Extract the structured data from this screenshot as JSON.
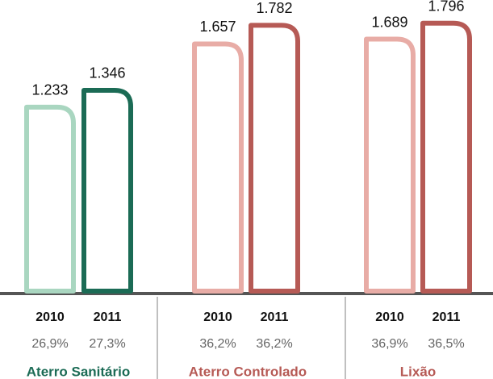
{
  "chart_data": {
    "type": "bar",
    "categories": [
      "Aterro Sanitário",
      "Aterro Controlado",
      "Lixão"
    ],
    "category_colors": [
      "#1b6b55",
      "#b65a55",
      "#b65a55"
    ],
    "series": [
      {
        "name": "2010",
        "colors": [
          "#a9d6c0",
          "#e8aca6",
          "#e8aca6"
        ],
        "values": [
          1.233,
          1.657,
          1.689
        ],
        "shares": [
          26.9,
          36.2,
          36.9
        ],
        "share_labels": [
          "26,9%",
          "36,2%",
          "36,9%"
        ]
      },
      {
        "name": "2011",
        "colors": [
          "#1b6b55",
          "#b65a55",
          "#b65a55"
        ],
        "values": [
          1.346,
          1.782,
          1.796
        ],
        "shares": [
          27.3,
          36.2,
          36.5
        ],
        "share_labels": [
          "27,3%",
          "36,2%",
          "36,5%"
        ]
      }
    ]
  }
}
